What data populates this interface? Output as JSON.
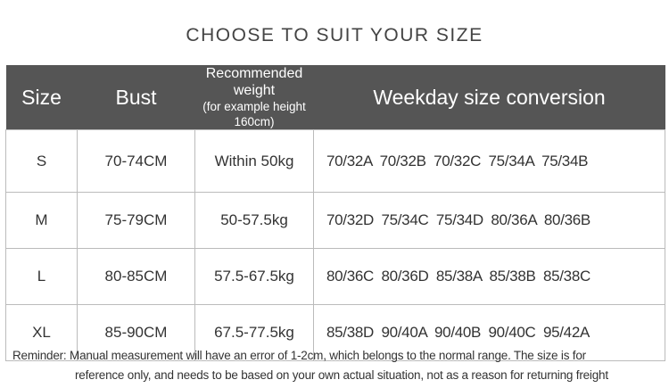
{
  "title": "CHOOSE TO SUIT YOUR SIZE",
  "header": {
    "size": "Size",
    "bust": "Bust",
    "weight_line1": "Recommended weight",
    "weight_line2": "(for example height 160cm)",
    "conversion": "Weekday size conversion"
  },
  "rows": [
    {
      "size": "S",
      "bust": "70-74CM",
      "weight": "Within 50kg",
      "conversion": "70/32A 70/32B 70/32C 75/34A 75/34B"
    },
    {
      "size": "M",
      "bust": "75-79CM",
      "weight": "50-57.5kg",
      "conversion": "70/32D 75/34C 75/34D 80/36A 80/36B"
    },
    {
      "size": "L",
      "bust": "80-85CM",
      "weight": "57.5-67.5kg",
      "conversion": "80/36C 80/36D 85/38A 85/38B 85/38C"
    },
    {
      "size": "XL",
      "bust": "85-90CM",
      "weight": "67.5-77.5kg",
      "conversion": "85/38D 90/40A 90/40B 90/40C 95/42A"
    }
  ],
  "note": {
    "line1": "Reminder: Manual measurement will have an error of 1-2cm, which belongs to the normal range. The size is for",
    "line2": "reference only, and needs to be based on your own actual situation, not as a reason for returning freight"
  },
  "colors": {
    "header_bg": "#555555",
    "border": "#bbbbbb"
  }
}
